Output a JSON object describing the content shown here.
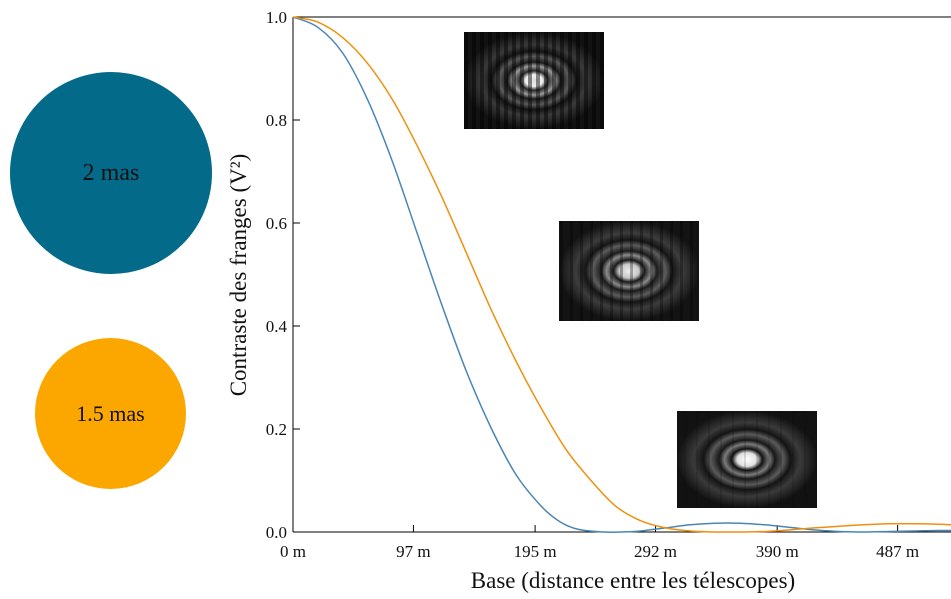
{
  "legend": {
    "items": [
      {
        "label": "2 mas",
        "color": "#046a8a"
      },
      {
        "label": "1.5 mas",
        "color": "#fca700"
      }
    ]
  },
  "chart_data": {
    "type": "line",
    "xlabel": "Base (distance entre les télescopes)",
    "ylabel": "Contraste des franges (V²)",
    "x_range_m": [
      0,
      530
    ],
    "ylim": [
      0,
      1.0
    ],
    "x_ticks": [
      {
        "value": 0,
        "label": "0 m"
      },
      {
        "value": 97,
        "label": "97 m"
      },
      {
        "value": 195,
        "label": "195 m"
      },
      {
        "value": 292,
        "label": "292 m"
      },
      {
        "value": 390,
        "label": "390 m"
      },
      {
        "value": 487,
        "label": "487 m"
      }
    ],
    "y_ticks": [
      {
        "value": 0.0,
        "label": "0.0"
      },
      {
        "value": 0.2,
        "label": "0.2"
      },
      {
        "value": 0.4,
        "label": "0.4"
      },
      {
        "value": 0.6,
        "label": "0.6"
      },
      {
        "value": 0.8,
        "label": "0.8"
      },
      {
        "value": 1.0,
        "label": "1.0"
      }
    ],
    "grid": false,
    "series": [
      {
        "label": "2 mas",
        "color": "#4a86b4",
        "x": [
          0,
          20,
          40,
          60,
          80,
          100,
          120,
          140,
          160,
          180,
          200,
          215,
          230,
          250,
          265,
          280,
          300,
          320,
          340,
          360,
          380,
          400,
          420,
          440,
          460,
          480,
          500,
          520,
          530
        ],
        "y": [
          1.0,
          0.98,
          0.93,
          0.84,
          0.72,
          0.58,
          0.44,
          0.31,
          0.2,
          0.11,
          0.05,
          0.02,
          0.005,
          0.0,
          0.0,
          0.002,
          0.008,
          0.014,
          0.017,
          0.017,
          0.014,
          0.009,
          0.004,
          0.001,
          0.0,
          0.001,
          0.002,
          0.003,
          0.003
        ]
      },
      {
        "label": "1.5 mas",
        "color": "#f0900e",
        "x": [
          0,
          20,
          40,
          60,
          80,
          100,
          120,
          140,
          160,
          180,
          200,
          220,
          240,
          260,
          280,
          300,
          320,
          340,
          350,
          360,
          380,
          400,
          420,
          440,
          460,
          480,
          500,
          520,
          530
        ],
        "y": [
          1.0,
          0.99,
          0.96,
          0.91,
          0.84,
          0.75,
          0.65,
          0.54,
          0.43,
          0.33,
          0.24,
          0.16,
          0.1,
          0.05,
          0.022,
          0.008,
          0.002,
          0.0,
          0.0,
          0.0,
          0.001,
          0.004,
          0.008,
          0.011,
          0.014,
          0.016,
          0.016,
          0.015,
          0.014
        ]
      }
    ]
  }
}
